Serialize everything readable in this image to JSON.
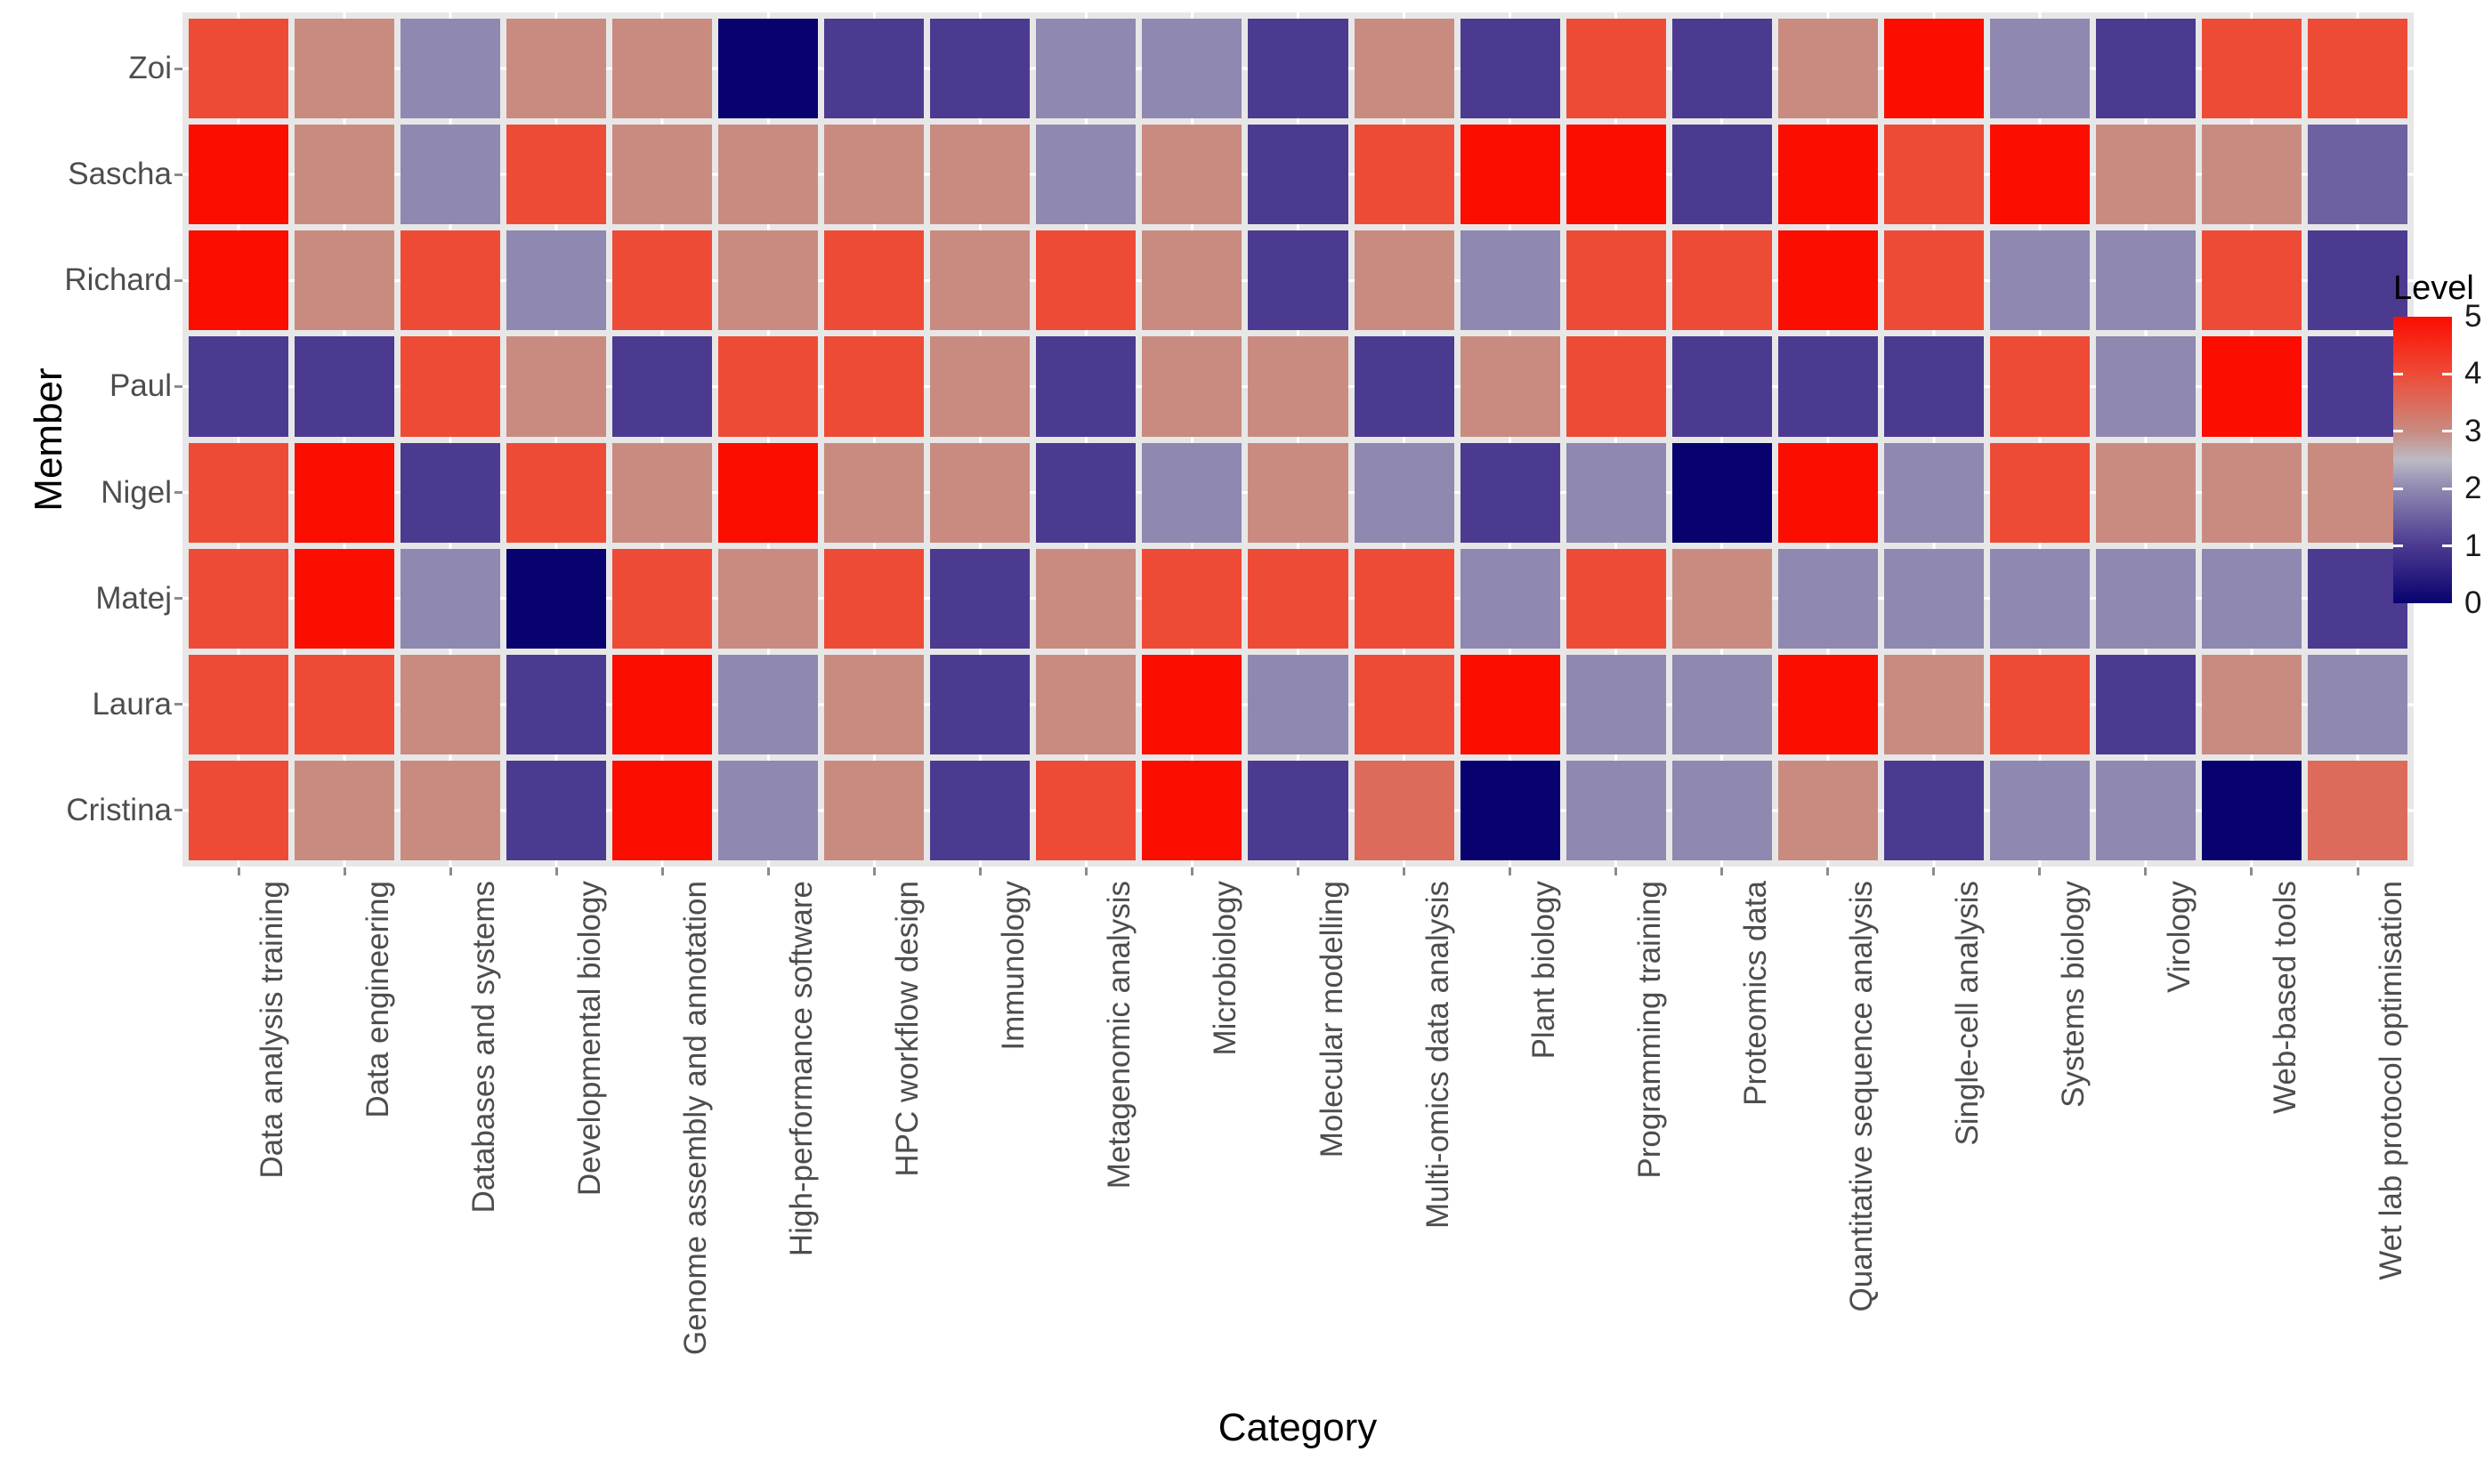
{
  "chart_data": {
    "type": "heatmap",
    "xlabel": "Category",
    "ylabel": "Member",
    "legend_title": "Level",
    "legend_ticks": [
      5,
      4,
      3,
      2,
      1,
      0
    ],
    "value_range": [
      0,
      5
    ],
    "legend_position": "right",
    "panel_background": "#E7E7E7",
    "gridline_color": "#FFFFFF",
    "categories": [
      "Data analysis training",
      "Data engineering",
      "Databases and systems",
      "Developmental biology",
      "Genome assembly and annotation",
      "High-performance software",
      "HPC workflow design",
      "Immunology",
      "Metagenomic analysis",
      "Microbiology",
      "Molecular modelling",
      "Multi-omics data analysis",
      "Plant biology",
      "Programming training",
      "Proteomics data",
      "Quantitative sequence analysis",
      "Single-cell analysis",
      "Systems biology",
      "Virology",
      "Web-based tools",
      "Wet lab protocol optimisation"
    ],
    "members": [
      "Zoi",
      "Sascha",
      "Richard",
      "Paul",
      "Nigel",
      "Matej",
      "Laura",
      "Cristina"
    ],
    "values": [
      [
        4,
        3,
        2,
        3,
        3,
        0,
        1,
        1,
        2,
        2,
        1,
        3,
        1,
        4,
        1,
        3,
        5,
        2,
        1,
        4,
        4
      ],
      [
        5,
        3,
        2,
        4,
        3,
        3,
        3,
        3,
        2,
        3,
        1,
        4,
        5,
        5,
        1,
        5,
        4,
        5,
        3,
        3,
        1.5
      ],
      [
        5,
        3,
        4,
        2,
        4,
        3,
        4,
        3,
        4,
        3,
        1,
        3,
        2,
        4,
        4,
        5,
        4,
        2,
        2,
        4,
        1
      ],
      [
        1,
        1,
        4,
        3,
        1,
        4,
        4,
        3,
        1,
        3,
        3,
        1,
        3,
        4,
        1,
        1,
        1,
        4,
        2,
        5,
        1
      ],
      [
        4,
        5,
        1,
        4,
        3,
        5,
        3,
        3,
        1,
        2,
        3,
        2,
        1,
        2,
        0,
        5,
        2,
        4,
        3,
        3,
        3
      ],
      [
        4,
        5,
        2,
        0,
        4,
        3,
        4,
        1,
        3,
        4,
        4,
        4,
        2,
        4,
        3,
        2,
        2,
        2,
        2,
        2,
        1
      ],
      [
        4,
        4,
        3,
        1,
        5,
        2,
        3,
        1,
        3,
        5,
        2,
        4,
        5,
        2,
        2,
        5,
        3,
        4,
        1,
        3,
        2
      ],
      [
        4,
        3,
        3,
        1,
        5,
        2,
        3,
        1,
        4,
        5,
        1,
        3.5,
        0,
        2,
        2,
        3,
        1,
        2,
        2,
        0,
        3.5
      ]
    ],
    "palette_stops": [
      {
        "value": 0,
        "color": "#08026F"
      },
      {
        "value": 1,
        "color": "#4C3A91"
      },
      {
        "value": 2,
        "color": "#8F88B0"
      },
      {
        "value": 2.5,
        "color": "#BCBAC4"
      },
      {
        "value": 3,
        "color": "#C98B80"
      },
      {
        "value": 4,
        "color": "#EE4B37"
      },
      {
        "value": 5,
        "color": "#FB0D00"
      }
    ]
  }
}
